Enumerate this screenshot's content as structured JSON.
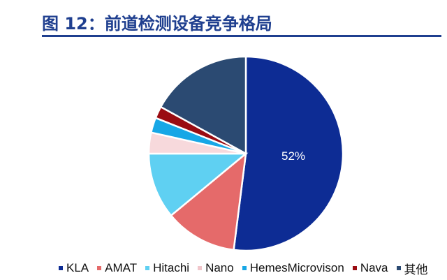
{
  "header": {
    "title": "图 12：前道检测设备竞争格局"
  },
  "chart_data": {
    "type": "pie",
    "title": "",
    "start_angle_deg": 0,
    "direction": "clockwise",
    "slices": [
      {
        "label": "KLA",
        "value": 52,
        "color": "#0d2c94",
        "data_label": "52%"
      },
      {
        "label": "AMAT",
        "value": 12,
        "color": "#e56a6a"
      },
      {
        "label": "Hitachi",
        "value": 11,
        "color": "#5fd0f2"
      },
      {
        "label": "Nano",
        "value": 3.5,
        "color": "#f7d9dc"
      },
      {
        "label": "HemesMicrovison",
        "value": 2.5,
        "color": "#17a7e6"
      },
      {
        "label": "Nava",
        "value": 2,
        "color": "#9a0c12"
      },
      {
        "label": "其他",
        "value": 17,
        "color": "#2b4a72"
      }
    ],
    "legend_position": "bottom"
  }
}
